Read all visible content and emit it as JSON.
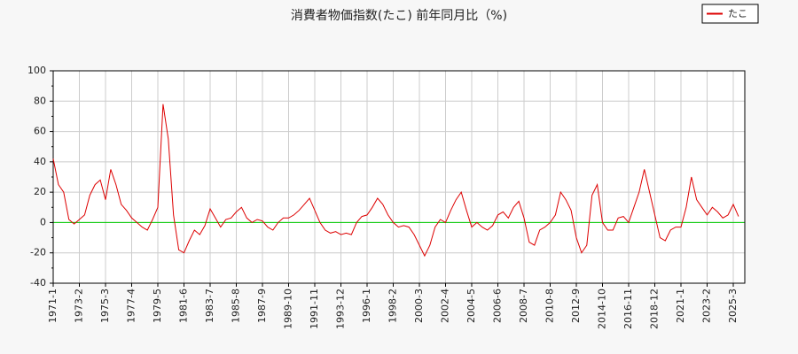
{
  "chart_data": {
    "type": "line",
    "title": "消費者物価指数(たこ) 前年同月比（%)",
    "categories": [
      "1971-1",
      null,
      null,
      null,
      null,
      "1973-2",
      null,
      null,
      null,
      null,
      "1975-3",
      null,
      null,
      null,
      null,
      "1977-4",
      null,
      null,
      null,
      null,
      "1979-5",
      null,
      null,
      null,
      null,
      "1981-6",
      null,
      null,
      null,
      null,
      "1983-7",
      null,
      null,
      null,
      null,
      "1985-8",
      null,
      null,
      null,
      null,
      "1987-9",
      null,
      null,
      null,
      null,
      "1989-10",
      null,
      null,
      null,
      null,
      "1991-11",
      null,
      null,
      null,
      null,
      "1993-12",
      null,
      null,
      null,
      null,
      "1996-1",
      null,
      null,
      null,
      null,
      "1998-2",
      null,
      null,
      null,
      null,
      "2000-3",
      null,
      null,
      null,
      null,
      "2002-4",
      null,
      null,
      null,
      null,
      "2004-5",
      null,
      null,
      null,
      null,
      "2006-6",
      null,
      null,
      null,
      null,
      "2008-7",
      null,
      null,
      null,
      null,
      "2010-8",
      null,
      null,
      null,
      null,
      "2012-9",
      null,
      null,
      null,
      null,
      "2014-10",
      null,
      null,
      null,
      null,
      "2016-11",
      null,
      null,
      null,
      null,
      "2018-12",
      null,
      null,
      null,
      null,
      "2021-1",
      null,
      null,
      null,
      null,
      "2023-2",
      null,
      null,
      null,
      null,
      "2025-3",
      null
    ],
    "series": [
      {
        "name": "たこ",
        "color": "#dd0000",
        "values": [
          42,
          25,
          20,
          2,
          -1,
          2,
          5,
          18,
          25,
          28,
          15,
          35,
          25,
          12,
          8,
          3,
          0,
          -3,
          -5,
          2,
          10,
          78,
          55,
          5,
          -18,
          -20,
          -12,
          -5,
          -8,
          -2,
          9,
          3,
          -3,
          2,
          3,
          7,
          10,
          3,
          0,
          2,
          1,
          -3,
          -5,
          0,
          3,
          3,
          5,
          8,
          12,
          16,
          8,
          0,
          -5,
          -7,
          -6,
          -8,
          -7,
          -8,
          0,
          4,
          5,
          10,
          16,
          12,
          5,
          0,
          -3,
          -2,
          -3,
          -8,
          -15,
          -22,
          -15,
          -3,
          2,
          0,
          8,
          15,
          20,
          8,
          -3,
          0,
          -3,
          -5,
          -2,
          5,
          7,
          3,
          10,
          14,
          3,
          -13,
          -15,
          -5,
          -3,
          0,
          5,
          20,
          15,
          8,
          -10,
          -20,
          -15,
          18,
          25,
          0,
          -5,
          -5,
          3,
          4,
          0,
          10,
          20,
          35,
          20,
          5,
          -10,
          -12,
          -5,
          -3,
          -3,
          10,
          30,
          15,
          10,
          5,
          10,
          7,
          3,
          5,
          12,
          4
        ]
      }
    ],
    "ylim": [
      -40,
      100
    ],
    "yticks": [
      -40,
      -20,
      0,
      20,
      40,
      60,
      80,
      100
    ],
    "grid": true,
    "zero_line_color": "#00cc00",
    "legend": "top-right"
  }
}
